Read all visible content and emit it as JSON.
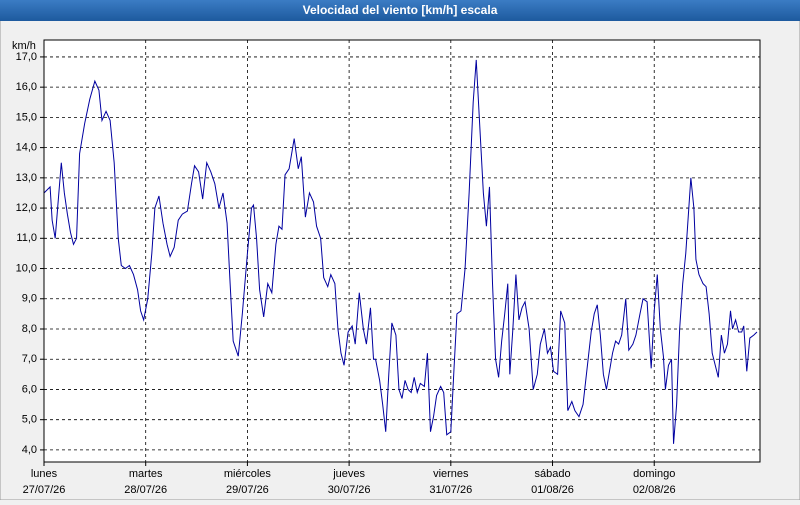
{
  "chart_data": {
    "type": "line",
    "title": "Velocidad del viento [km/h] escala",
    "y_unit": "km/h",
    "color": "#0000a0",
    "grid": true,
    "xlim": [
      0,
      7.04
    ],
    "xticks": [
      {
        "value": 0,
        "label": "lunes",
        "date": "27/07/26"
      },
      {
        "value": 1,
        "label": "martes",
        "date": "28/07/26"
      },
      {
        "value": 2,
        "label": "miércoles",
        "date": "29/07/26"
      },
      {
        "value": 3,
        "label": "jueves",
        "date": "30/07/26"
      },
      {
        "value": 4,
        "label": "viernes",
        "date": "31/07/26"
      },
      {
        "value": 5,
        "label": "sábado",
        "date": "01/08/26"
      },
      {
        "value": 6,
        "label": "domingo",
        "date": "02/08/26"
      }
    ],
    "ylim": [
      3.6,
      17.56
    ],
    "yticks": [
      {
        "value": 4,
        "label": "4,0"
      },
      {
        "value": 5,
        "label": "5,0"
      },
      {
        "value": 6,
        "label": "6,0"
      },
      {
        "value": 7,
        "label": "7,0"
      },
      {
        "value": 8,
        "label": "8,0"
      },
      {
        "value": 9,
        "label": "9,0"
      },
      {
        "value": 10,
        "label": "10,0"
      },
      {
        "value": 11,
        "label": "11,0"
      },
      {
        "value": 12,
        "label": "12,0"
      },
      {
        "value": 13,
        "label": "13,0"
      },
      {
        "value": 14,
        "label": "14,0"
      },
      {
        "value": 15,
        "label": "15,0"
      },
      {
        "value": 16,
        "label": "16,0"
      },
      {
        "value": 17,
        "label": "17,0"
      }
    ],
    "x": [
      0.0,
      0.06,
      0.08,
      0.11,
      0.17,
      0.2,
      0.23,
      0.26,
      0.29,
      0.32,
      0.35,
      0.4,
      0.45,
      0.5,
      0.54,
      0.57,
      0.61,
      0.65,
      0.69,
      0.73,
      0.76,
      0.8,
      0.84,
      0.88,
      0.92,
      0.95,
      0.98,
      1.02,
      1.06,
      1.09,
      1.13,
      1.17,
      1.21,
      1.24,
      1.28,
      1.32,
      1.36,
      1.41,
      1.45,
      1.48,
      1.52,
      1.56,
      1.6,
      1.64,
      1.68,
      1.72,
      1.76,
      1.8,
      1.83,
      1.86,
      1.91,
      1.95,
      2.0,
      2.04,
      2.06,
      2.09,
      2.12,
      2.16,
      2.2,
      2.24,
      2.28,
      2.31,
      2.34,
      2.37,
      2.41,
      2.46,
      2.5,
      2.53,
      2.57,
      2.61,
      2.65,
      2.68,
      2.72,
      2.75,
      2.79,
      2.82,
      2.86,
      2.89,
      2.92,
      2.95,
      2.99,
      3.03,
      3.06,
      3.1,
      3.14,
      3.17,
      3.21,
      3.24,
      3.26,
      3.3,
      3.33,
      3.36,
      3.39,
      3.42,
      3.46,
      3.49,
      3.52,
      3.55,
      3.58,
      3.61,
      3.64,
      3.67,
      3.7,
      3.74,
      3.77,
      3.8,
      3.83,
      3.86,
      3.9,
      3.93,
      3.96,
      4.0,
      4.03,
      4.06,
      4.1,
      4.14,
      4.18,
      4.22,
      4.25,
      4.28,
      4.32,
      4.35,
      4.38,
      4.41,
      4.44,
      4.47,
      4.5,
      4.53,
      4.56,
      4.58,
      4.61,
      4.64,
      4.67,
      4.7,
      4.73,
      4.77,
      4.81,
      4.85,
      4.88,
      4.92,
      4.95,
      4.98,
      5.01,
      5.05,
      5.08,
      5.12,
      5.15,
      5.19,
      5.22,
      5.26,
      5.3,
      5.34,
      5.38,
      5.41,
      5.44,
      5.47,
      5.5,
      5.53,
      5.56,
      5.59,
      5.62,
      5.65,
      5.68,
      5.72,
      5.75,
      5.79,
      5.82,
      5.86,
      5.89,
      5.93,
      5.97,
      6.0,
      6.03,
      6.06,
      6.09,
      6.11,
      6.14,
      6.17,
      6.19,
      6.22,
      6.25,
      6.28,
      6.31,
      6.34,
      6.36,
      6.39,
      6.41,
      6.44,
      6.48,
      6.51,
      6.54,
      6.57,
      6.6,
      6.63,
      6.66,
      6.69,
      6.72,
      6.75,
      6.77,
      6.8,
      6.83,
      6.86,
      6.88,
      6.91,
      6.94,
      6.98,
      7.01
    ],
    "values": [
      12.5,
      12.7,
      11.6,
      11.0,
      13.5,
      12.5,
      11.8,
      11.2,
      10.8,
      11.0,
      13.8,
      14.8,
      15.6,
      16.2,
      15.9,
      14.9,
      15.2,
      14.9,
      13.5,
      11.0,
      10.1,
      10.0,
      10.1,
      9.8,
      9.3,
      8.6,
      8.3,
      9.0,
      10.5,
      12.0,
      12.4,
      11.5,
      10.8,
      10.4,
      10.7,
      11.6,
      11.8,
      11.9,
      12.8,
      13.4,
      13.2,
      12.3,
      13.5,
      13.2,
      12.8,
      12.0,
      12.5,
      11.5,
      9.5,
      7.6,
      7.1,
      8.5,
      10.5,
      12.0,
      12.1,
      11.0,
      9.3,
      8.4,
      9.5,
      9.2,
      10.8,
      11.4,
      11.3,
      13.1,
      13.3,
      14.3,
      13.3,
      13.7,
      11.7,
      12.5,
      12.2,
      11.4,
      11.0,
      9.7,
      9.4,
      9.8,
      9.5,
      8.0,
      7.2,
      6.8,
      7.9,
      8.1,
      7.5,
      9.2,
      8.0,
      7.5,
      8.7,
      7.0,
      7.0,
      6.3,
      5.5,
      4.6,
      6.5,
      8.2,
      7.8,
      6.0,
      5.7,
      6.3,
      6.0,
      5.9,
      6.4,
      5.9,
      6.2,
      6.1,
      7.2,
      4.6,
      5.1,
      5.8,
      6.1,
      5.9,
      4.5,
      4.6,
      6.6,
      8.5,
      8.6,
      10.0,
      12.5,
      15.5,
      16.9,
      15.0,
      12.5,
      11.4,
      12.7,
      9.5,
      7.0,
      6.4,
      7.6,
      8.5,
      9.5,
      6.5,
      8.0,
      9.8,
      8.3,
      8.7,
      8.9,
      8.0,
      6.0,
      6.5,
      7.5,
      8.0,
      7.2,
      7.4,
      6.6,
      6.5,
      8.6,
      8.2,
      5.3,
      5.6,
      5.3,
      5.1,
      5.5,
      6.7,
      7.9,
      8.5,
      8.8,
      7.8,
      6.5,
      6.0,
      6.6,
      7.2,
      7.6,
      7.5,
      7.8,
      9.0,
      7.3,
      7.5,
      7.8,
      8.5,
      9.0,
      8.9,
      6.7,
      8.6,
      9.8,
      8.0,
      7.1,
      6.0,
      6.8,
      7.0,
      4.2,
      5.5,
      8.0,
      9.5,
      10.5,
      12.0,
      13.0,
      12.0,
      10.3,
      9.8,
      9.5,
      9.4,
      8.5,
      7.2,
      6.8,
      6.4,
      7.8,
      7.2,
      7.5,
      8.6,
      8.0,
      8.3,
      7.9,
      7.9,
      8.1,
      6.6,
      7.7,
      7.8,
      7.9
    ]
  }
}
